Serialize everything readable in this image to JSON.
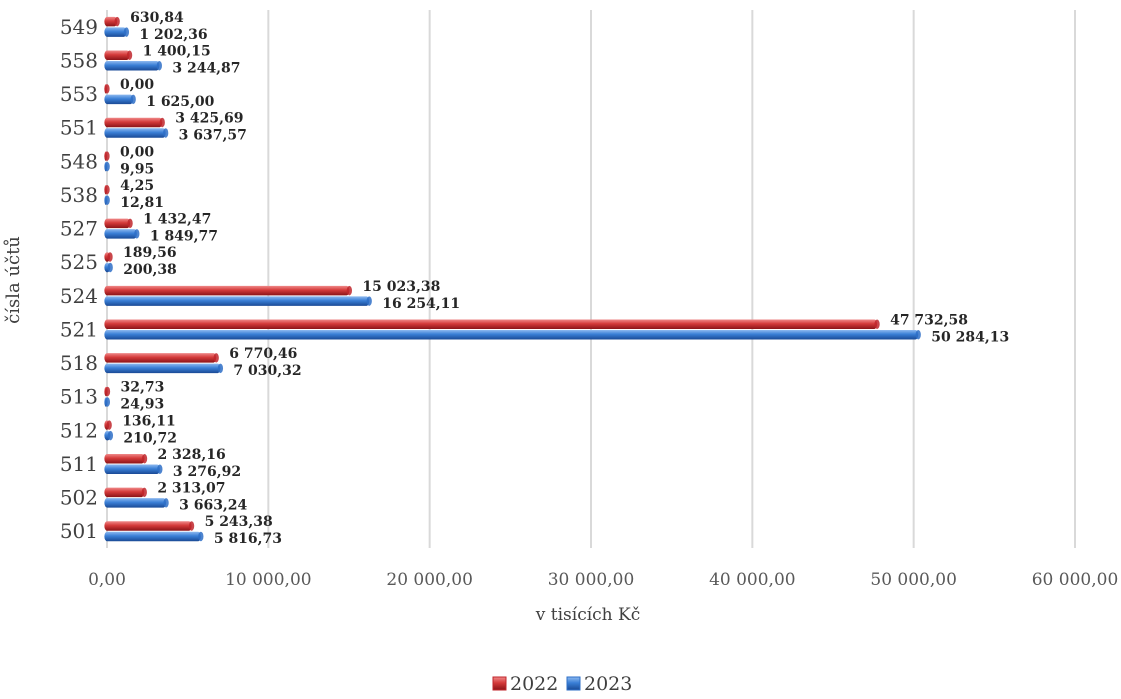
{
  "chart_data": {
    "type": "bar",
    "orientation": "horizontal",
    "categories": [
      "501",
      "502",
      "511",
      "512",
      "513",
      "518",
      "521",
      "524",
      "525",
      "527",
      "538",
      "548",
      "551",
      "553",
      "558",
      "549"
    ],
    "series": [
      {
        "name": "2022",
        "color": "#c0262b",
        "values": [
          5243.38,
          2313.07,
          2328.16,
          136.11,
          32.73,
          6770.46,
          47732.58,
          15023.38,
          189.56,
          1432.47,
          4.25,
          0.0,
          3425.69,
          0.0,
          1400.15,
          630.84
        ],
        "labels": [
          "5 243,38",
          "2 313,07",
          "2 328,16",
          "136,11",
          "32,73",
          "6 770,46",
          "47 732,58",
          "15 023,38",
          "189,56",
          "1 432,47",
          "4,25",
          "0,00",
          "3 425,69",
          "0,00",
          "1 400,15",
          "630,84"
        ]
      },
      {
        "name": "2023",
        "color": "#2e6fc7",
        "values": [
          5816.73,
          3663.24,
          3276.92,
          210.72,
          24.93,
          7030.32,
          50284.13,
          16254.11,
          200.38,
          1849.77,
          12.81,
          9.95,
          3637.57,
          1625.0,
          3244.87,
          1202.36
        ],
        "labels": [
          "5 816,73",
          "3 663,24",
          "3 276,92",
          "210,72",
          "24,93",
          "7 030,32",
          "50 284,13",
          "16 254,11",
          "200,38",
          "1 849,77",
          "12,81",
          "9,95",
          "3 637,57",
          "1 625,00",
          "3 244,87",
          "1 202,36"
        ]
      }
    ],
    "xlim": [
      0,
      60000
    ],
    "x_ticks": [
      0,
      10000,
      20000,
      30000,
      40000,
      50000,
      60000
    ],
    "x_tick_labels": [
      "0,00",
      "10 000,00",
      "20 000,00",
      "30 000,00",
      "40 000,00",
      "50 000,00",
      "60 000,00"
    ],
    "xlabel": "v tisících Kč",
    "ylabel": "čísla účtů",
    "grid": "vertical",
    "legend": "bottom"
  }
}
